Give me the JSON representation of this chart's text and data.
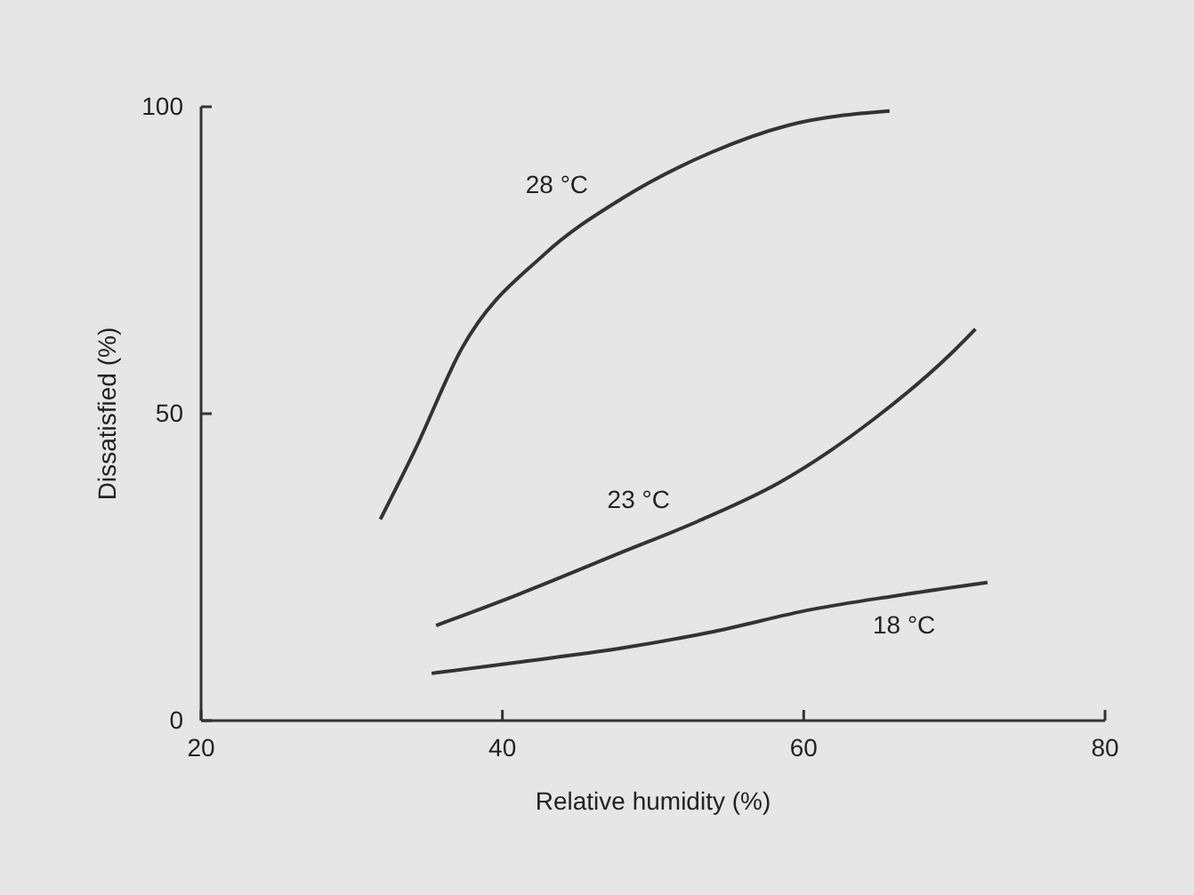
{
  "chart_data": {
    "type": "line",
    "xlabel": "Relative humidity (%)",
    "ylabel": "Dissatisfied (%)",
    "xlim": [
      20,
      80
    ],
    "xticks": [
      20,
      40,
      60,
      80
    ],
    "ylim": [
      0,
      100
    ],
    "yticks": [
      0,
      50,
      100
    ],
    "grid": false,
    "marker": "none",
    "line_style": "solid",
    "series": [
      {
        "name": "28 °C",
        "color": "#333333",
        "x": [
          31.9,
          34.2,
          37.3,
          42.8,
          47.9,
          53.8,
          59,
          65.7
        ],
        "values": [
          32.8,
          44.1,
          60.6,
          76,
          85,
          92.5,
          97,
          99.3
        ]
      },
      {
        "name": "23 °C",
        "color": "#333333",
        "x": [
          35.6,
          41,
          47.9,
          53,
          58.4,
          64.7,
          69.7,
          71.4
        ],
        "values": [
          15.5,
          20.5,
          27.4,
          32.5,
          38.8,
          49.2,
          59.6,
          63.8
        ]
      },
      {
        "name": "18 °C",
        "color": "#333333",
        "x": [
          35.3,
          41,
          47.9,
          54,
          60.5,
          66,
          72.2
        ],
        "values": [
          7.7,
          9.5,
          11.8,
          14.5,
          18.1,
          20.3,
          22.5
        ]
      }
    ]
  }
}
